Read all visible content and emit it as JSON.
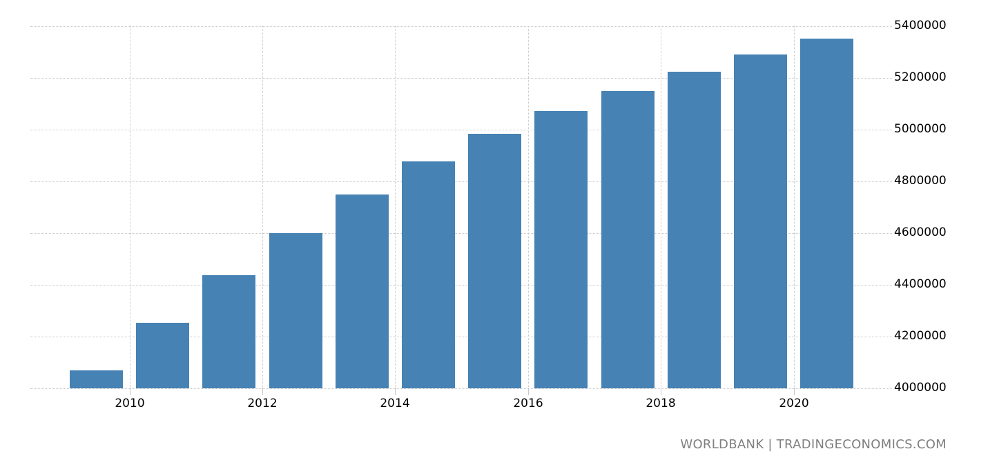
{
  "chart_data": {
    "type": "bar",
    "title": "",
    "xlabel": "",
    "ylabel": "",
    "categories": [
      "2009",
      "2010",
      "2011",
      "2012",
      "2013",
      "2014",
      "2015",
      "2016",
      "2017",
      "2018",
      "2019",
      "2020"
    ],
    "values": [
      4069000,
      4253000,
      4437000,
      4600000,
      4749000,
      4877000,
      4984000,
      5072000,
      5149000,
      5224000,
      5291000,
      5352000
    ],
    "ylim": [
      4000000,
      5400000
    ],
    "yticks": [
      4000000,
      4200000,
      4400000,
      4600000,
      4800000,
      5000000,
      5200000,
      5400000
    ],
    "ytick_labels": [
      "4000000",
      "4200000",
      "4400000",
      "4600000",
      "4800000",
      "5000000",
      "5200000",
      "5400000"
    ],
    "xtick_labels": [
      "2010",
      "2012",
      "2014",
      "2016",
      "2018",
      "2020"
    ],
    "y_axis_position": "right",
    "grid": true,
    "bar_color": "#4682b4",
    "legend": null
  },
  "source_label": "WORLDBANK | TRADINGECONOMICS.COM"
}
